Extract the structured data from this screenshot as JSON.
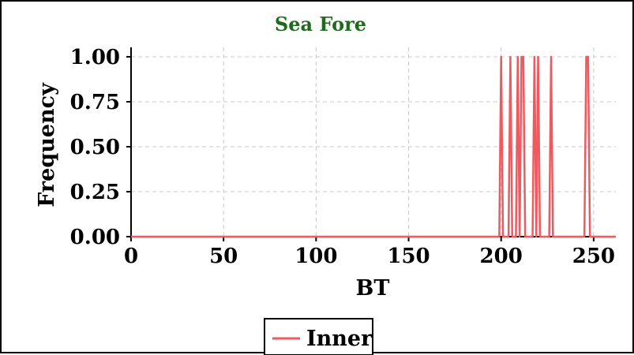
{
  "colors": {
    "title": "#1e6b1e",
    "series": "#f0595f",
    "grid": "#c8c8c8",
    "axis": "#000000"
  },
  "chart_data": {
    "type": "line",
    "title": "Sea Fore",
    "xlabel": "BT",
    "ylabel": "Frequency",
    "xlim": [
      0,
      262
    ],
    "ylim": [
      0,
      1.0
    ],
    "xticks": [
      0,
      50,
      100,
      150,
      200,
      250
    ],
    "xtick_labels": [
      "0",
      "50",
      "100",
      "150",
      "200",
      "250"
    ],
    "yticks": [
      0,
      0.25,
      0.5,
      0.75,
      1.0
    ],
    "ytick_labels": [
      "0.00",
      "0.25",
      "0.50",
      "0.75",
      "1.00"
    ],
    "grid": true,
    "legend_position": "bottom-center",
    "series": [
      {
        "name": "Inner",
        "x": [
          0,
          199,
          200,
          201,
          204,
          205,
          206,
          208,
          209,
          210,
          211,
          212,
          213,
          217,
          218,
          219,
          220,
          221,
          226,
          227,
          228,
          245,
          246,
          247,
          248,
          262
        ],
        "y": [
          0,
          0,
          1,
          0,
          0,
          1,
          0,
          0,
          1,
          0,
          1,
          1,
          0,
          0,
          1,
          0,
          1,
          0,
          0,
          1,
          0,
          0,
          1,
          1,
          0,
          0
        ]
      }
    ]
  }
}
